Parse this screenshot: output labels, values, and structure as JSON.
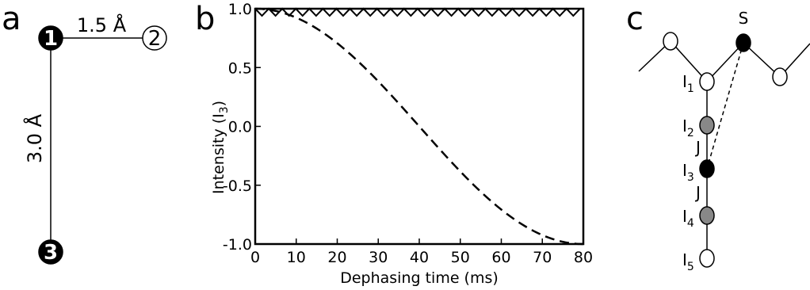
{
  "panel_a": {
    "label": "a",
    "atoms": [
      {
        "id": "1",
        "fill": "#000000",
        "text_color": "#ffffff"
      },
      {
        "id": "2",
        "fill": "#ffffff",
        "text_color": "#000000"
      },
      {
        "id": "3",
        "fill": "#000000",
        "text_color": "#ffffff"
      }
    ],
    "distance_12": "1.5 Å",
    "distance_13": "3.0 Å"
  },
  "panel_b": {
    "label": "b"
  },
  "chart_data": {
    "type": "line",
    "xlabel": "Dephasing time (ms)",
    "ylabel_main": "Intensity (I",
    "ylabel_sub": "3",
    "ylabel_end": ")",
    "xlim": [
      0,
      80
    ],
    "ylim": [
      -1.0,
      1.0
    ],
    "xticks": [
      0,
      10,
      20,
      30,
      40,
      50,
      60,
      70,
      80
    ],
    "xtick_labels": [
      "0",
      "10",
      "20",
      "30",
      "40",
      "50",
      "60",
      "70",
      "80"
    ],
    "yticks": [
      -1.0,
      -0.5,
      0.0,
      0.5,
      1.0
    ],
    "ytick_labels": [
      "-1.0",
      "-0.5",
      "0.0",
      "0.5",
      "1.0"
    ],
    "grid": false,
    "series": [
      {
        "style": "dashed",
        "function": "cos(pi*t/80)",
        "x_range": [
          0,
          80
        ]
      },
      {
        "style": "solid",
        "description": "fast small-amplitude oscillation near 1.0",
        "period_ms": 3.3,
        "min": 0.94,
        "max": 1.0
      }
    ]
  },
  "panel_c": {
    "label": "c",
    "s_label": "S",
    "sites": [
      {
        "letter": "I",
        "sub": "1",
        "fill": "#ffffff"
      },
      {
        "letter": "I",
        "sub": "2",
        "fill": "#888888"
      },
      {
        "letter": "I",
        "sub": "3",
        "fill": "#000000"
      },
      {
        "letter": "I",
        "sub": "4",
        "fill": "#888888"
      },
      {
        "letter": "I",
        "sub": "5",
        "fill": "#ffffff"
      }
    ],
    "j_label": "J"
  }
}
